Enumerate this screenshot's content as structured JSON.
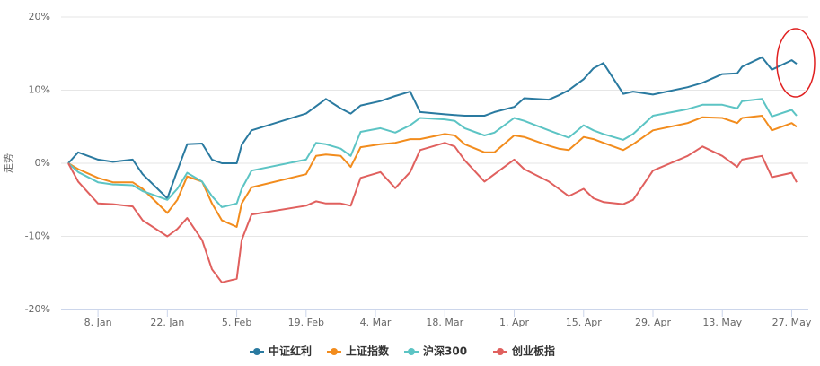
{
  "chart_data": {
    "type": "line",
    "y_label": "走势",
    "x": [
      "2. Jan",
      "4. Jan",
      "8. Jan",
      "11. Jan",
      "15. Jan",
      "17. Jan",
      "22. Jan",
      "24. Jan",
      "26. Jan",
      "29. Jan",
      "31. Jan",
      "2. Feb",
      "5. Feb",
      "6. Feb",
      "8. Feb",
      "19. Feb",
      "21. Feb",
      "23. Feb",
      "26. Feb",
      "28. Feb",
      "1. Mar",
      "5. Mar",
      "8. Mar",
      "11. Mar",
      "13. Mar",
      "18. Mar",
      "20. Mar",
      "22. Mar",
      "26. Mar",
      "28. Mar",
      "1. Apr",
      "3. Apr",
      "8. Apr",
      "10. Apr",
      "12. Apr",
      "15. Apr",
      "17. Apr",
      "19. Apr",
      "23. Apr",
      "25. Apr",
      "29. Apr",
      "6. May",
      "9. May",
      "13. May",
      "16. May",
      "17. May",
      "21. May",
      "23. May",
      "27. May",
      "28. May"
    ],
    "xticks": [
      "8. Jan",
      "22. Jan",
      "5. Feb",
      "19. Feb",
      "4. Mar",
      "18. Mar",
      "1. Apr",
      "15. Apr",
      "29. Apr",
      "13. May",
      "27. May"
    ],
    "ylim": [
      -20,
      20
    ],
    "yticks": [
      {
        "value": -20,
        "label": "-20%"
      },
      {
        "value": -10,
        "label": "-10%"
      },
      {
        "value": 0,
        "label": "0%"
      },
      {
        "value": 10,
        "label": "10%"
      },
      {
        "value": 20,
        "label": "20%"
      }
    ],
    "grid": true,
    "legend": "bottom",
    "series": [
      {
        "name": "中证红利",
        "color": "#2a7aa0",
        "values": [
          0,
          1.5,
          0.5,
          0.2,
          0.5,
          -1.5,
          -4.8,
          -1.0,
          2.6,
          2.7,
          0.5,
          0.0,
          0.0,
          2.5,
          4.5,
          6.8,
          7.8,
          8.8,
          7.5,
          6.8,
          7.9,
          8.5,
          9.2,
          9.8,
          7.0,
          6.7,
          6.6,
          6.5,
          6.5,
          7.0,
          7.7,
          8.9,
          8.7,
          9.3,
          10.0,
          11.5,
          13.0,
          13.7,
          9.5,
          9.8,
          9.4,
          10.4,
          11.0,
          12.2,
          12.3,
          13.2,
          14.5,
          12.8,
          14.1,
          13.6
        ]
      },
      {
        "name": "上证指数",
        "color": "#f28c1d",
        "values": [
          0,
          -0.8,
          -2.0,
          -2.6,
          -2.6,
          -3.5,
          -6.8,
          -5.0,
          -1.8,
          -2.5,
          -5.5,
          -7.8,
          -8.7,
          -5.5,
          -3.3,
          -1.5,
          1.0,
          1.2,
          1.0,
          -0.5,
          2.2,
          2.6,
          2.8,
          3.3,
          3.3,
          4.0,
          3.8,
          2.6,
          1.5,
          1.5,
          3.8,
          3.6,
          2.4,
          2.0,
          1.8,
          3.6,
          3.3,
          2.8,
          1.8,
          2.6,
          4.5,
          5.5,
          6.3,
          6.2,
          5.5,
          6.2,
          6.5,
          4.5,
          5.5,
          5.0
        ]
      },
      {
        "name": "沪深300",
        "color": "#5cc4c4",
        "values": [
          0,
          -1.2,
          -2.6,
          -2.9,
          -3.0,
          -3.8,
          -5.0,
          -3.5,
          -1.3,
          -2.5,
          -4.5,
          -6.0,
          -5.5,
          -3.5,
          -1.0,
          0.5,
          2.8,
          2.6,
          2.0,
          1.0,
          4.3,
          4.8,
          4.2,
          5.2,
          6.2,
          6.0,
          5.8,
          4.8,
          3.8,
          4.2,
          6.2,
          5.8,
          4.5,
          4.0,
          3.5,
          5.2,
          4.5,
          4.0,
          3.2,
          4.0,
          6.5,
          7.4,
          8.0,
          8.0,
          7.5,
          8.5,
          8.8,
          6.4,
          7.3,
          6.5
        ]
      },
      {
        "name": "创业板指",
        "color": "#e0605e",
        "values": [
          0,
          -2.5,
          -5.5,
          -5.6,
          -5.9,
          -7.8,
          -10.0,
          -9.0,
          -7.5,
          -10.5,
          -14.5,
          -16.3,
          -15.8,
          -10.5,
          -7.0,
          -5.8,
          -5.2,
          -5.5,
          -5.5,
          -5.8,
          -2.0,
          -1.2,
          -3.4,
          -1.2,
          1.8,
          2.8,
          2.3,
          0.4,
          -2.5,
          -1.5,
          0.5,
          -0.8,
          -2.5,
          -3.5,
          -4.5,
          -3.5,
          -4.8,
          -5.3,
          -5.6,
          -5.0,
          -1.0,
          1.0,
          2.3,
          1.0,
          -0.5,
          0.5,
          1.0,
          -1.9,
          -1.3,
          -2.6
        ]
      }
    ]
  }
}
